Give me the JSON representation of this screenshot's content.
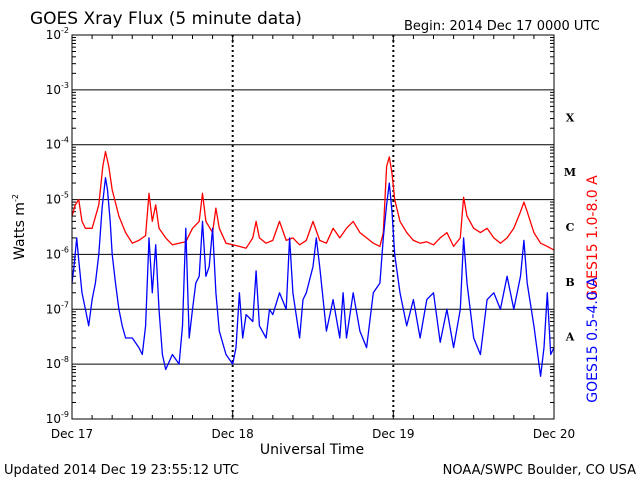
{
  "header": {
    "title": "GOES Xray Flux (5 minute data)",
    "begin": "Begin:  2014 Dec 17 0000 UTC"
  },
  "footer": {
    "updated": "Updated 2014 Dec 19 23:55:12 UTC",
    "credit": "NOAA/SWPC Boulder, CO USA"
  },
  "chart_data": {
    "type": "line",
    "title": "GOES Xray Flux (5 minute data)",
    "xlabel": "Universal Time",
    "ylabel": "Watts m",
    "ylabel_sup": "-2",
    "yscale": "log",
    "ylim": [
      1e-09,
      0.01
    ],
    "xlim": [
      0,
      72
    ],
    "x_unit": "hours since 2014 Dec 17 0000 UTC",
    "x_ticks": [
      {
        "x": 0,
        "label": "Dec 17"
      },
      {
        "x": 24,
        "label": "Dec 18"
      },
      {
        "x": 48,
        "label": "Dec 19"
      },
      {
        "x": 72,
        "label": "Dec 20"
      }
    ],
    "y_ticks": [
      {
        "exp": -9,
        "base": "10",
        "sup": "-9"
      },
      {
        "exp": -8,
        "base": "10",
        "sup": "-8"
      },
      {
        "exp": -7,
        "base": "10",
        "sup": "-7"
      },
      {
        "exp": -6,
        "base": "10",
        "sup": "-6"
      },
      {
        "exp": -5,
        "base": "10",
        "sup": "-5"
      },
      {
        "exp": -4,
        "base": "10",
        "sup": "-4"
      },
      {
        "exp": -3,
        "base": "10",
        "sup": "-3"
      },
      {
        "exp": -2,
        "base": "10",
        "sup": "-2"
      }
    ],
    "flare_classes": [
      {
        "label": "A",
        "exp": -7.5
      },
      {
        "label": "B",
        "exp": -6.5
      },
      {
        "label": "C",
        "exp": -5.5
      },
      {
        "label": "M",
        "exp": -4.5
      },
      {
        "label": "X",
        "exp": -3.5
      }
    ],
    "grid": true,
    "colors": {
      "long": "#ff0000",
      "short": "#0000ff"
    },
    "series": [
      {
        "name": "GOES15 1.0-8.0 A",
        "color": "#ff0000",
        "points": [
          [
            0,
            5e-06
          ],
          [
            0.5,
            8e-06
          ],
          [
            1,
            1e-05
          ],
          [
            1.5,
            4e-06
          ],
          [
            2,
            3e-06
          ],
          [
            3,
            3e-06
          ],
          [
            4,
            8e-06
          ],
          [
            4.6,
            4e-05
          ],
          [
            5,
            7.5e-05
          ],
          [
            5.5,
            4e-05
          ],
          [
            6,
            1.5e-05
          ],
          [
            7,
            5e-06
          ],
          [
            8,
            2.5e-06
          ],
          [
            9,
            1.6e-06
          ],
          [
            10,
            1.8e-06
          ],
          [
            11,
            2.2e-06
          ],
          [
            11.5,
            1.3e-05
          ],
          [
            12,
            4e-06
          ],
          [
            12.5,
            8e-06
          ],
          [
            13,
            3e-06
          ],
          [
            14,
            2e-06
          ],
          [
            15,
            1.5e-06
          ],
          [
            16,
            1.6e-06
          ],
          [
            17,
            1.7e-06
          ],
          [
            18,
            3e-06
          ],
          [
            19,
            4e-06
          ],
          [
            19.5,
            1.3e-05
          ],
          [
            20,
            4e-06
          ],
          [
            21,
            2.5e-06
          ],
          [
            21.5,
            7e-06
          ],
          [
            22,
            3e-06
          ],
          [
            23,
            1.6e-06
          ],
          [
            24,
            1.5e-06
          ],
          [
            25,
            1.4e-06
          ],
          [
            26,
            1.3e-06
          ],
          [
            27,
            2e-06
          ],
          [
            27.5,
            4e-06
          ],
          [
            28,
            2e-06
          ],
          [
            29,
            1.6e-06
          ],
          [
            30,
            1.8e-06
          ],
          [
            31,
            4e-06
          ],
          [
            32,
            1.8e-06
          ],
          [
            33,
            2e-06
          ],
          [
            34,
            1.5e-06
          ],
          [
            35,
            1.8e-06
          ],
          [
            36,
            4e-06
          ],
          [
            37,
            1.8e-06
          ],
          [
            38,
            1.6e-06
          ],
          [
            39,
            3e-06
          ],
          [
            40,
            2e-06
          ],
          [
            41,
            3e-06
          ],
          [
            42,
            4e-06
          ],
          [
            43,
            2.5e-06
          ],
          [
            44,
            2e-06
          ],
          [
            45,
            1.6e-06
          ],
          [
            46,
            1.4e-06
          ],
          [
            46.5,
            2.5e-06
          ],
          [
            47,
            4e-05
          ],
          [
            47.4,
            6e-05
          ],
          [
            47.8,
            3e-05
          ],
          [
            48.2,
            1e-05
          ],
          [
            49,
            4e-06
          ],
          [
            50,
            2.5e-06
          ],
          [
            51,
            1.8e-06
          ],
          [
            52,
            1.6e-06
          ],
          [
            53,
            1.7e-06
          ],
          [
            54,
            1.5e-06
          ],
          [
            55,
            2e-06
          ],
          [
            56,
            2.5e-06
          ],
          [
            57,
            1.4e-06
          ],
          [
            58,
            2e-06
          ],
          [
            58.5,
            1.1e-05
          ],
          [
            59,
            5e-06
          ],
          [
            60,
            3e-06
          ],
          [
            61,
            2.5e-06
          ],
          [
            62,
            3e-06
          ],
          [
            63,
            2e-06
          ],
          [
            64,
            1.6e-06
          ],
          [
            65,
            2e-06
          ],
          [
            66,
            3e-06
          ],
          [
            67,
            6e-06
          ],
          [
            67.5,
            9e-06
          ],
          [
            68,
            6e-06
          ],
          [
            69,
            2.5e-06
          ],
          [
            70,
            1.6e-06
          ],
          [
            71,
            1.4e-06
          ],
          [
            72,
            1.2e-06
          ]
        ]
      },
      {
        "name": "GOES15 0.5-4.0 A",
        "color": "#0000ff",
        "points": [
          [
            0,
            3e-07
          ],
          [
            0.3,
            6e-07
          ],
          [
            0.7,
            2e-06
          ],
          [
            1,
            8e-07
          ],
          [
            1.5,
            2e-07
          ],
          [
            2,
            1e-07
          ],
          [
            2.5,
            5e-08
          ],
          [
            3,
            1.5e-07
          ],
          [
            3.5,
            3e-07
          ],
          [
            4,
            1e-06
          ],
          [
            4.5,
            7e-06
          ],
          [
            5,
            2.5e-05
          ],
          [
            5.3,
            1.5e-05
          ],
          [
            5.7,
            4e-06
          ],
          [
            6,
            1e-06
          ],
          [
            6.5,
            3e-07
          ],
          [
            7,
            1e-07
          ],
          [
            7.5,
            5e-08
          ],
          [
            8,
            3e-08
          ],
          [
            9,
            3e-08
          ],
          [
            10,
            2e-08
          ],
          [
            10.5,
            1.5e-08
          ],
          [
            11,
            5e-08
          ],
          [
            11.5,
            2e-06
          ],
          [
            12,
            2e-07
          ],
          [
            12.5,
            1.5e-06
          ],
          [
            13,
            1e-07
          ],
          [
            13.5,
            1.5e-08
          ],
          [
            14,
            8e-09
          ],
          [
            15,
            1.5e-08
          ],
          [
            16,
            1e-08
          ],
          [
            16.5,
            5e-08
          ],
          [
            17,
            3e-06
          ],
          [
            17.5,
            3e-08
          ],
          [
            18,
            1e-07
          ],
          [
            18.5,
            3e-07
          ],
          [
            19,
            4e-07
          ],
          [
            19.5,
            4e-06
          ],
          [
            20,
            4e-07
          ],
          [
            20.5,
            6e-07
          ],
          [
            21,
            3e-06
          ],
          [
            21.5,
            2e-07
          ],
          [
            22,
            4e-08
          ],
          [
            23,
            1.5e-08
          ],
          [
            24,
            1e-08
          ],
          [
            24.5,
            2e-08
          ],
          [
            25,
            2e-07
          ],
          [
            25.5,
            3e-08
          ],
          [
            26,
            8e-08
          ],
          [
            27,
            6e-08
          ],
          [
            27.5,
            5e-07
          ],
          [
            28,
            5e-08
          ],
          [
            29,
            3e-08
          ],
          [
            29.5,
            1e-07
          ],
          [
            30,
            8e-08
          ],
          [
            31,
            2e-07
          ],
          [
            32,
            1e-07
          ],
          [
            32.5,
            2e-06
          ],
          [
            33,
            2e-07
          ],
          [
            34,
            3e-08
          ],
          [
            34.5,
            1.5e-07
          ],
          [
            35,
            2e-07
          ],
          [
            36,
            6e-07
          ],
          [
            36.5,
            2e-06
          ],
          [
            37,
            6e-07
          ],
          [
            38,
            4e-08
          ],
          [
            39,
            1.5e-07
          ],
          [
            40,
            3e-08
          ],
          [
            40.5,
            2e-07
          ],
          [
            41,
            3e-08
          ],
          [
            42,
            2e-07
          ],
          [
            43,
            4e-08
          ],
          [
            44,
            2e-08
          ],
          [
            45,
            2e-07
          ],
          [
            46,
            3e-07
          ],
          [
            46.5,
            2e-06
          ],
          [
            47,
            8e-06
          ],
          [
            47.4,
            2e-05
          ],
          [
            47.8,
            6e-06
          ],
          [
            48.2,
            1e-06
          ],
          [
            49,
            2e-07
          ],
          [
            50,
            5e-08
          ],
          [
            51,
            1.5e-07
          ],
          [
            52,
            3e-08
          ],
          [
            53,
            1.5e-07
          ],
          [
            54,
            2e-07
          ],
          [
            55,
            2.5e-08
          ],
          [
            56,
            1e-07
          ],
          [
            57,
            2e-08
          ],
          [
            58,
            1e-07
          ],
          [
            58.5,
            2e-06
          ],
          [
            59,
            3e-07
          ],
          [
            60,
            3e-08
          ],
          [
            61,
            1.5e-08
          ],
          [
            62,
            1.5e-07
          ],
          [
            63,
            2e-07
          ],
          [
            64,
            1e-07
          ],
          [
            65,
            4e-07
          ],
          [
            66,
            1e-07
          ],
          [
            67,
            4e-07
          ],
          [
            67.5,
            1.8e-06
          ],
          [
            68,
            3e-07
          ],
          [
            69,
            5e-08
          ],
          [
            70,
            6e-09
          ],
          [
            70.5,
            2e-08
          ],
          [
            71,
            2e-07
          ],
          [
            71.5,
            1.5e-08
          ],
          [
            72,
            2e-08
          ]
        ]
      }
    ]
  }
}
